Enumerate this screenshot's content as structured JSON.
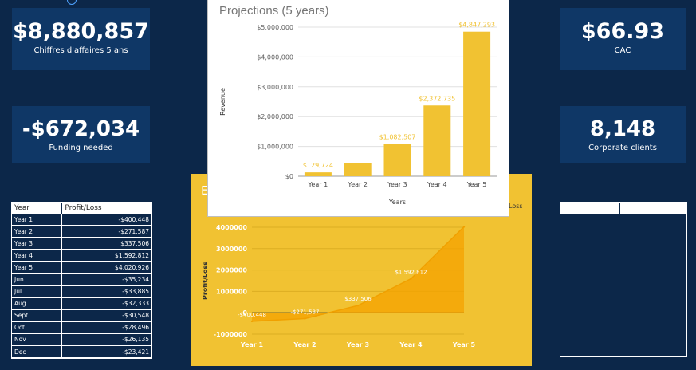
{
  "kpis": {
    "revenue": {
      "value": "$8,880,857",
      "label": "Chiffres d'affaires 5 ans"
    },
    "funding": {
      "value": "-$672,034",
      "label": "Funding needed"
    },
    "cac": {
      "value": "$66.93",
      "label": "CAC"
    },
    "clients": {
      "value": "8,148",
      "label": "Corporate clients"
    }
  },
  "table": {
    "headers": [
      "Year",
      "Profit/Loss"
    ],
    "rows": [
      [
        "Year 1",
        "-$400,448"
      ],
      [
        "Year 2",
        "-$271,587"
      ],
      [
        "Year 3",
        "$337,506"
      ],
      [
        "Year 4",
        "$1,592,812"
      ],
      [
        "Year 5",
        "$4,020,926"
      ],
      [
        "Jun",
        "-$35,234"
      ],
      [
        "Jul",
        "-$33,885"
      ],
      [
        "Aug",
        "-$32,333"
      ],
      [
        "Sept",
        "-$30,548"
      ],
      [
        "Oct",
        "-$28,496"
      ],
      [
        "Nov",
        "-$26,135"
      ],
      [
        "Dec",
        "-$23,421"
      ]
    ]
  },
  "pl_panel": {
    "title_fragment": "E",
    "legend_fragment": "Loss"
  },
  "chart_data": [
    {
      "type": "bar",
      "title": "Projections (5 years)",
      "xlabel": "Years",
      "ylabel": "Revenue",
      "categories": [
        "Year 1",
        "Year 2",
        "Year 3",
        "Year 4",
        "Year 5"
      ],
      "values": [
        129724,
        448600,
        1082507,
        2372735,
        4847293
      ],
      "data_labels": [
        "$129,724",
        "",
        "$1,082,507",
        "$2,372,735",
        "$4,847,293"
      ],
      "ylim": [
        0,
        5000000
      ],
      "yticks": [
        0,
        1000000,
        2000000,
        3000000,
        4000000,
        5000000
      ],
      "ytick_labels": [
        "$0",
        "$1,000,000",
        "$2,000,000",
        "$3,000,000",
        "$4,000,000",
        "$5,000,000"
      ],
      "color": "#f1c232",
      "grid": true
    },
    {
      "type": "area",
      "ylabel": "Profit/Loss",
      "categories": [
        "Year 1",
        "Year 2",
        "Year 3",
        "Year 4",
        "Year 5"
      ],
      "values": [
        -400448,
        -271587,
        337506,
        1592812,
        4020926
      ],
      "data_labels": [
        "-$400,448",
        "-$271,587",
        "$337,506",
        "$1,592,812",
        ""
      ],
      "ylim": [
        -1000000,
        4000000
      ],
      "yticks": [
        -1000000,
        0,
        1000000,
        2000000,
        3000000,
        4000000
      ],
      "ytick_labels": [
        "-1000000",
        "0",
        "1000000",
        "2000000",
        "3000000",
        "4000000"
      ],
      "color": "#f4a100",
      "grid": true
    }
  ]
}
